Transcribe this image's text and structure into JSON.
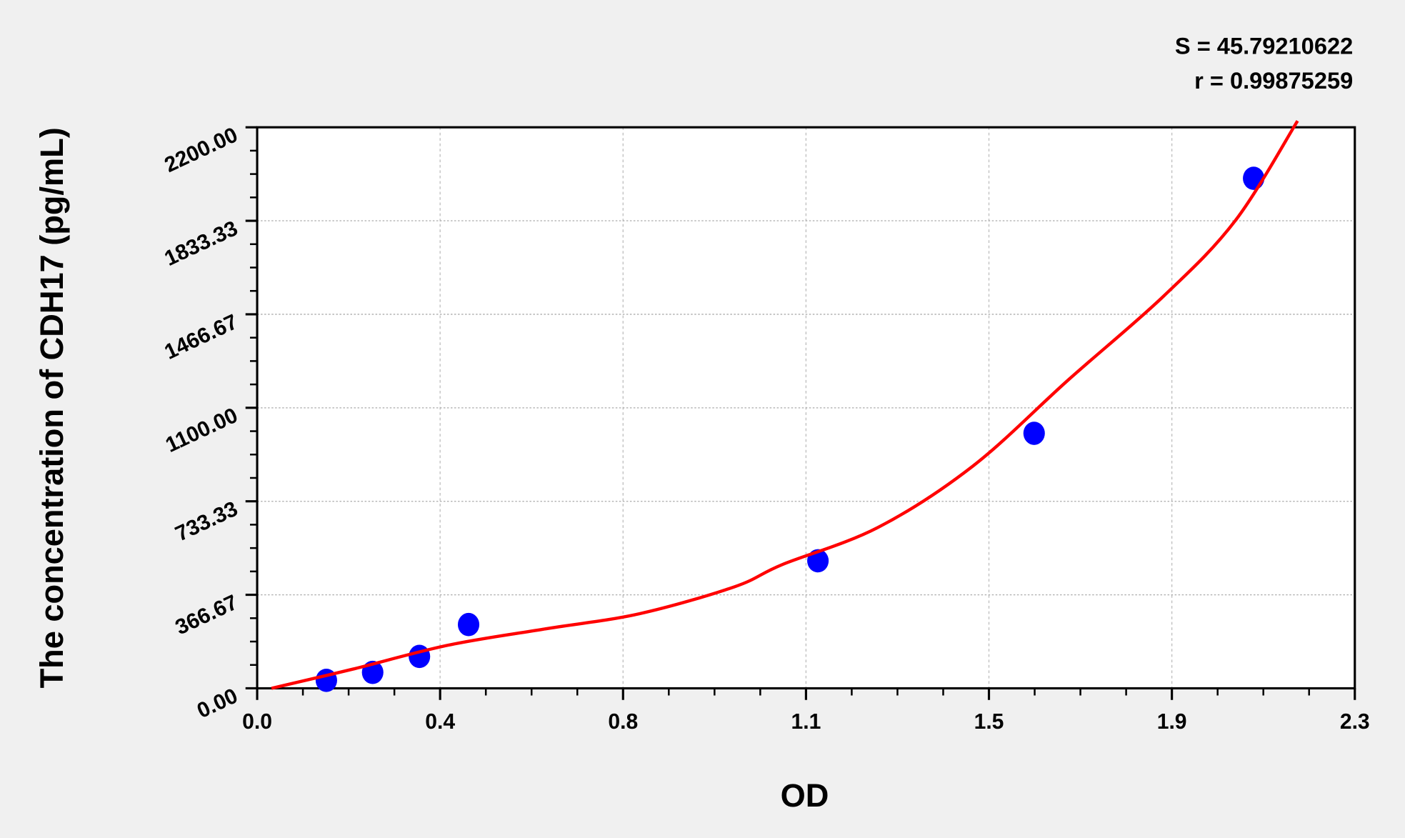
{
  "chart_data": {
    "type": "scatter",
    "title": "",
    "xlabel": "OD",
    "ylabel": "The concentration of CDH17 (pg/mL)",
    "xlim": [
      0,
      2.3
    ],
    "ylim": [
      0,
      2200
    ],
    "x_ticks": [
      "0.0",
      "0.4",
      "0.8",
      "1.1",
      "1.5",
      "1.9",
      "2.3"
    ],
    "y_ticks": [
      "0.00",
      "366.67",
      "733.33",
      "1100.00",
      "1466.67",
      "1833.33",
      "2200.00"
    ],
    "grid": true,
    "annotations": {
      "s": "S = 45.79210622",
      "r": "r = 0.99875259"
    },
    "points": {
      "x": [
        0.145,
        0.242,
        0.34,
        0.443,
        1.175,
        1.628,
        2.088
      ],
      "y": [
        31.25,
        62.5,
        125,
        250,
        500,
        1000,
        2000
      ],
      "color": "#0000ff"
    },
    "fit_curve": {
      "color": "#ff0000",
      "x": [
        0.03,
        0.2,
        0.4,
        0.6,
        0.8,
        1.0,
        1.1,
        1.3,
        1.5,
        1.7,
        1.9,
        2.05,
        2.18
      ],
      "y": [
        0,
        75,
        169,
        232,
        292,
        398,
        485,
        630,
        872,
        1210,
        1539,
        1835,
        2225
      ]
    }
  }
}
